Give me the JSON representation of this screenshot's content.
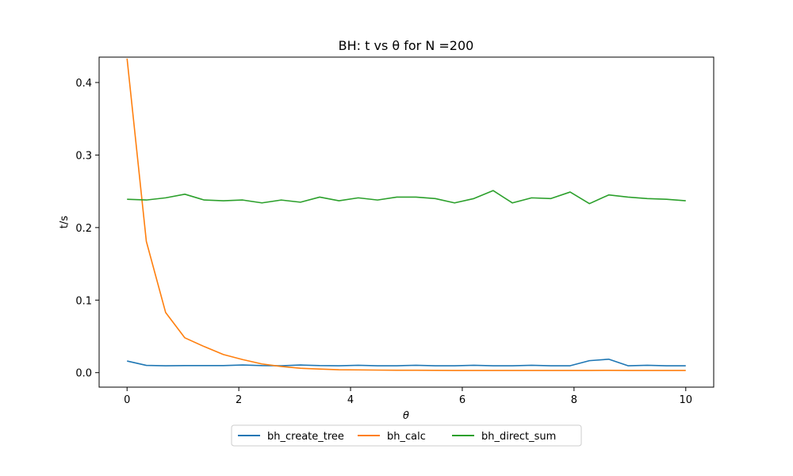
{
  "chart_data": {
    "type": "line",
    "title": "BH: t vs θ for N =200",
    "xlabel": "θ",
    "ylabel": "t/s",
    "xlim": [
      -0.5,
      10.5
    ],
    "ylim": [
      -0.02,
      0.435
    ],
    "xticks": [
      0,
      2,
      4,
      6,
      8,
      10
    ],
    "yticks": [
      0.0,
      0.1,
      0.2,
      0.3,
      0.4
    ],
    "xtick_labels": [
      "0",
      "2",
      "4",
      "6",
      "8",
      "10"
    ],
    "ytick_labels": [
      "0.0",
      "0.1",
      "0.2",
      "0.3",
      "0.4"
    ],
    "legend_position": "bottom-center",
    "grid": false,
    "x": [
      0,
      0.345,
      0.69,
      1.034,
      1.379,
      1.724,
      2.069,
      2.414,
      2.759,
      3.103,
      3.448,
      3.793,
      4.138,
      4.483,
      4.828,
      5.172,
      5.517,
      5.862,
      6.207,
      6.552,
      6.897,
      7.241,
      7.586,
      7.931,
      8.276,
      8.621,
      8.966,
      9.31,
      9.655,
      10
    ],
    "series": [
      {
        "name": "bh_create_tree",
        "color": "#1f77b4",
        "values": [
          0.016,
          0.01,
          0.0095,
          0.0097,
          0.0097,
          0.0097,
          0.0105,
          0.0097,
          0.0095,
          0.0105,
          0.0097,
          0.0095,
          0.0102,
          0.0095,
          0.0095,
          0.0102,
          0.0095,
          0.0095,
          0.0102,
          0.0095,
          0.0095,
          0.0102,
          0.0095,
          0.0095,
          0.0165,
          0.0185,
          0.0095,
          0.0102,
          0.0095,
          0.0095
        ]
      },
      {
        "name": "bh_calc",
        "color": "#ff7f0e",
        "values": [
          0.433,
          0.181,
          0.083,
          0.048,
          0.036,
          0.025,
          0.018,
          0.012,
          0.0085,
          0.006,
          0.005,
          0.004,
          0.0038,
          0.0035,
          0.0033,
          0.0033,
          0.0032,
          0.003,
          0.003,
          0.003,
          0.003,
          0.003,
          0.003,
          0.003,
          0.003,
          0.0032,
          0.003,
          0.003,
          0.003,
          0.003
        ]
      },
      {
        "name": "bh_direct_sum",
        "color": "#2ca02c",
        "values": [
          0.239,
          0.238,
          0.241,
          0.246,
          0.238,
          0.237,
          0.238,
          0.234,
          0.238,
          0.235,
          0.242,
          0.237,
          0.241,
          0.238,
          0.242,
          0.242,
          0.24,
          0.234,
          0.24,
          0.251,
          0.234,
          0.241,
          0.24,
          0.249,
          0.233,
          0.245,
          0.242,
          0.24,
          0.239,
          0.237
        ]
      }
    ]
  }
}
